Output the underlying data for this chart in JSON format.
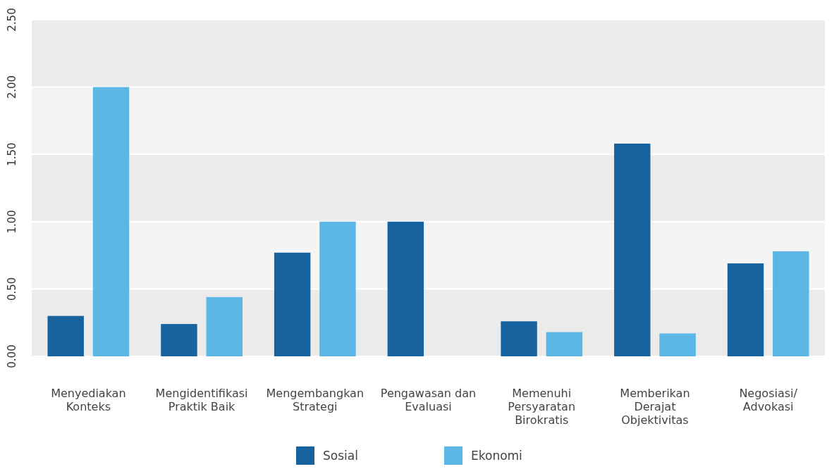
{
  "chart_data": {
    "type": "bar",
    "categories": [
      "Menyediakan Konteks",
      "Mengidentifikasi Praktik Baik",
      "Mengembangkan Strategi",
      "Pengawasan dan Evaluasi",
      "Memenuhi Persyaratan Birokratis",
      "Memberikan Derajat Objektivitas",
      "Negosiasi/ Advokasi"
    ],
    "series": [
      {
        "name": "Sosial",
        "color": "#17639f",
        "values": [
          0.3,
          0.24,
          0.77,
          1.0,
          0.26,
          1.58,
          0.69
        ]
      },
      {
        "name": "Ekonomi",
        "color": "#5cb6e6",
        "values": [
          2.0,
          0.44,
          1.0,
          null,
          0.18,
          0.17,
          0.78
        ]
      }
    ],
    "ylim": [
      0,
      2.5
    ],
    "yticks": [
      {
        "value": 0,
        "label": "0.00"
      },
      {
        "value": 0.5,
        "label": "0.50"
      },
      {
        "value": 1,
        "label": "1.00"
      },
      {
        "value": 1.5,
        "label": "1.50"
      },
      {
        "value": 2,
        "label": "2.00"
      },
      {
        "value": 2.5,
        "label": "2.50"
      }
    ],
    "grid": "y",
    "legend": "bottom"
  }
}
